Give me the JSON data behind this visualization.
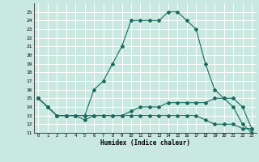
{
  "title": "",
  "xlabel": "Humidex (Indice chaleur)",
  "bg_color": "#c8e8e0",
  "grid_color": "#ffffff",
  "line_color": "#1a6b5e",
  "xlim": [
    -0.5,
    23.5
  ],
  "ylim": [
    11,
    26
  ],
  "xticks": [
    0,
    1,
    2,
    3,
    4,
    5,
    6,
    7,
    8,
    9,
    10,
    11,
    12,
    13,
    14,
    15,
    16,
    17,
    18,
    19,
    20,
    21,
    22,
    23
  ],
  "yticks": [
    11,
    12,
    13,
    14,
    15,
    16,
    17,
    18,
    19,
    20,
    21,
    22,
    23,
    24,
    25
  ],
  "line1_x": [
    0,
    1,
    2,
    3,
    4,
    5,
    6,
    7,
    8,
    9,
    10,
    11,
    12,
    13,
    14,
    15,
    16,
    17,
    18,
    19,
    20,
    21,
    22,
    23
  ],
  "line1_y": [
    15,
    14,
    13,
    13,
    13,
    13,
    16,
    17,
    19,
    21,
    24,
    24,
    24,
    24,
    25,
    25,
    24,
    23,
    19,
    16,
    15,
    14,
    12,
    11
  ],
  "line2_x": [
    0,
    1,
    2,
    3,
    4,
    5,
    6,
    7,
    8,
    9,
    10,
    11,
    12,
    13,
    14,
    15,
    16,
    17,
    18,
    19,
    20,
    21,
    22,
    23
  ],
  "line2_y": [
    15,
    14,
    13,
    13,
    13,
    13,
    13,
    13,
    13,
    13,
    13.5,
    14,
    14,
    14,
    14.5,
    14.5,
    14.5,
    14.5,
    14.5,
    15,
    15,
    15,
    14,
    11.5
  ],
  "line3_x": [
    0,
    1,
    2,
    3,
    4,
    5,
    6,
    7,
    8,
    9,
    10,
    11,
    12,
    13,
    14,
    15,
    16,
    17,
    18,
    19,
    20,
    21,
    22,
    23
  ],
  "line3_y": [
    15,
    14,
    13,
    13,
    13,
    12.5,
    13,
    13,
    13,
    13,
    13,
    13,
    13,
    13,
    13,
    13,
    13,
    13,
    12.5,
    12,
    12,
    12,
    11.5,
    11.5
  ]
}
